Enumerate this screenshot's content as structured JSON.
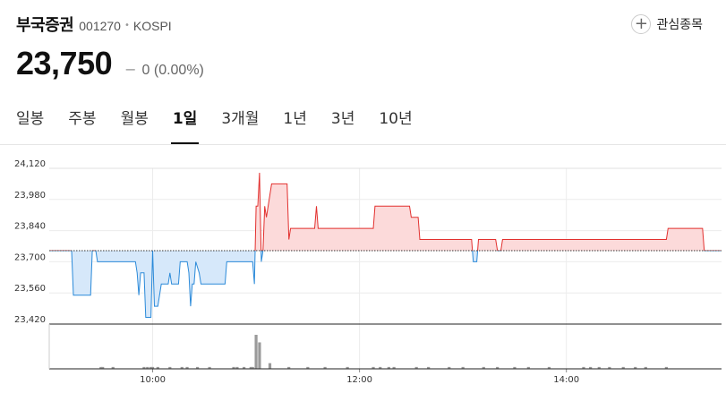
{
  "stock": {
    "name": "부국증권",
    "code": "001270",
    "separator": "•",
    "market": "KOSPI",
    "price": "23,750",
    "change_sign": "−",
    "change": "0 (0.00%)",
    "watch_label": "관심종목",
    "watch_icon": "+"
  },
  "tabs": [
    {
      "label": "일봉",
      "active": false
    },
    {
      "label": "주봉",
      "active": false
    },
    {
      "label": "월봉",
      "active": false
    },
    {
      "label": "1일",
      "active": true
    },
    {
      "label": "3개월",
      "active": false
    },
    {
      "label": "1년",
      "active": false
    },
    {
      "label": "3년",
      "active": false
    },
    {
      "label": "10년",
      "active": false
    }
  ],
  "colors": {
    "up": "#e2312f",
    "up_fill": "#fcdada",
    "down": "#2b8ad9",
    "down_fill": "#d6e8fa",
    "volume": "#9a9a9a"
  },
  "chart_data": {
    "type": "area",
    "baseline": 23750,
    "ylim": [
      23420,
      24120
    ],
    "yticks": [
      "24,120",
      "23,980",
      "23,840",
      "23,700",
      "23,560",
      "23,420"
    ],
    "xlim": [
      "09:00",
      "15:30"
    ],
    "xticks": [
      "10:00",
      "12:00",
      "14:00"
    ],
    "price_series": [
      [
        "09:00",
        23750
      ],
      [
        "09:13",
        23750
      ],
      [
        "09:14",
        23550
      ],
      [
        "09:24",
        23550
      ],
      [
        "09:25",
        23750
      ],
      [
        "09:27",
        23750
      ],
      [
        "09:28",
        23700
      ],
      [
        "09:50",
        23700
      ],
      [
        "09:51",
        23650
      ],
      [
        "09:52",
        23550
      ],
      [
        "09:53",
        23650
      ],
      [
        "09:55",
        23650
      ],
      [
        "09:56",
        23450
      ],
      [
        "09:59",
        23450
      ],
      [
        "10:00",
        23750
      ],
      [
        "10:01",
        23500
      ],
      [
        "10:03",
        23500
      ],
      [
        "10:05",
        23600
      ],
      [
        "10:09",
        23600
      ],
      [
        "10:10",
        23650
      ],
      [
        "10:11",
        23600
      ],
      [
        "10:15",
        23600
      ],
      [
        "10:16",
        23700
      ],
      [
        "10:20",
        23700
      ],
      [
        "10:21",
        23650
      ],
      [
        "10:22",
        23500
      ],
      [
        "10:23",
        23600
      ],
      [
        "10:24",
        23600
      ],
      [
        "10:25",
        23700
      ],
      [
        "10:27",
        23650
      ],
      [
        "10:28",
        23600
      ],
      [
        "10:42",
        23600
      ],
      [
        "10:43",
        23700
      ],
      [
        "10:58",
        23700
      ],
      [
        "10:59",
        23600
      ],
      [
        "11:00",
        23950
      ],
      [
        "11:01",
        23950
      ],
      [
        "11:02",
        24100
      ],
      [
        "11:03",
        23700
      ],
      [
        "11:04",
        23750
      ],
      [
        "11:05",
        23950
      ],
      [
        "11:06",
        23900
      ],
      [
        "11:09",
        24050
      ],
      [
        "11:18",
        24050
      ],
      [
        "11:19",
        23800
      ],
      [
        "11:20",
        23850
      ],
      [
        "11:34",
        23850
      ],
      [
        "11:35",
        23950
      ],
      [
        "11:36",
        23850
      ],
      [
        "11:50",
        23850
      ],
      [
        "12:08",
        23850
      ],
      [
        "12:09",
        23950
      ],
      [
        "12:29",
        23950
      ],
      [
        "12:30",
        23900
      ],
      [
        "12:34",
        23900
      ],
      [
        "12:35",
        23800
      ],
      [
        "13:05",
        23800
      ],
      [
        "13:06",
        23700
      ],
      [
        "13:08",
        23700
      ],
      [
        "13:09",
        23800
      ],
      [
        "13:19",
        23800
      ],
      [
        "13:20",
        23750
      ],
      [
        "13:22",
        23750
      ],
      [
        "13:23",
        23800
      ],
      [
        "14:58",
        23800
      ],
      [
        "14:59",
        23850
      ],
      [
        "15:19",
        23850
      ],
      [
        "15:20",
        23750
      ],
      [
        "15:30",
        23750
      ]
    ],
    "volume_bars": [
      [
        "09:30",
        1
      ],
      [
        "09:31",
        1
      ],
      [
        "09:37",
        1
      ],
      [
        "09:55",
        1
      ],
      [
        "09:57",
        1
      ],
      [
        "09:59",
        1
      ],
      [
        "10:00",
        1
      ],
      [
        "10:03",
        1
      ],
      [
        "10:10",
        1
      ],
      [
        "10:17",
        1
      ],
      [
        "10:20",
        1
      ],
      [
        "10:26",
        1
      ],
      [
        "10:33",
        1
      ],
      [
        "10:47",
        1
      ],
      [
        "10:49",
        1
      ],
      [
        "10:53",
        1
      ],
      [
        "10:57",
        1
      ],
      [
        "10:58",
        1
      ],
      [
        "11:00",
        18
      ],
      [
        "11:02",
        14
      ],
      [
        "11:08",
        3
      ],
      [
        "11:19",
        1
      ],
      [
        "11:30",
        1
      ],
      [
        "11:40",
        1
      ],
      [
        "11:53",
        1
      ],
      [
        "12:08",
        1
      ],
      [
        "12:12",
        1
      ],
      [
        "12:17",
        1
      ],
      [
        "12:20",
        1
      ],
      [
        "12:33",
        1
      ],
      [
        "12:40",
        1
      ],
      [
        "12:52",
        1
      ],
      [
        "13:00",
        1
      ],
      [
        "13:12",
        1
      ],
      [
        "13:20",
        1
      ],
      [
        "13:30",
        1
      ],
      [
        "13:38",
        1
      ],
      [
        "13:50",
        1
      ],
      [
        "14:10",
        1
      ],
      [
        "14:14",
        1
      ],
      [
        "14:19",
        1
      ],
      [
        "14:25",
        1
      ],
      [
        "14:33",
        1
      ],
      [
        "14:40",
        1
      ],
      [
        "14:46",
        1
      ],
      [
        "14:58",
        1
      ]
    ]
  }
}
